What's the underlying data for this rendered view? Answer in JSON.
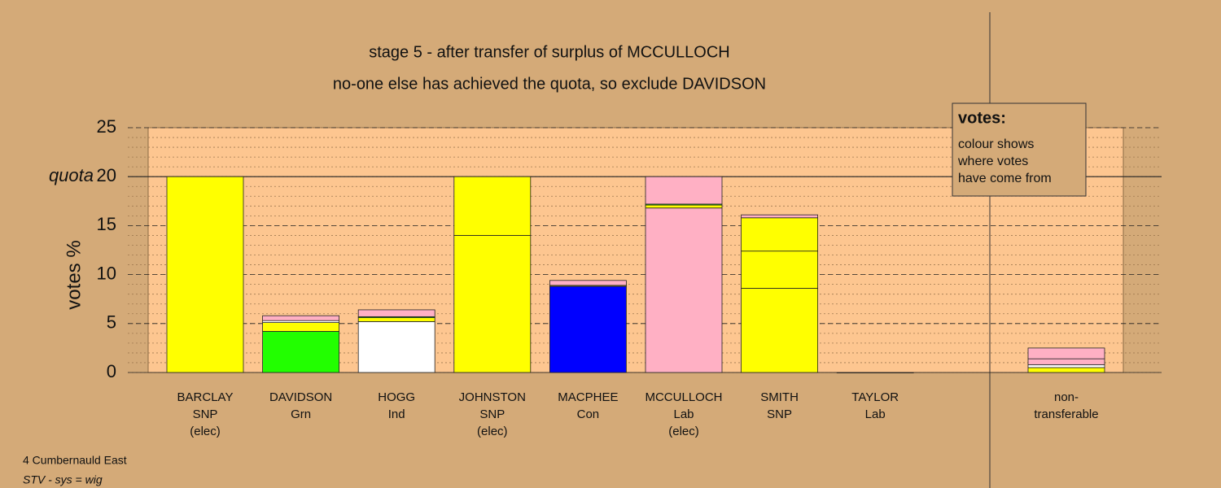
{
  "chart_data": {
    "type": "stacked-bar",
    "title": "stage 5 - after transfer of surplus of MCCULLOCH",
    "subtitle": "no-one else has achieved the quota, so exclude DAVIDSON",
    "y_label": "votes %",
    "quota_label": "quota",
    "quota": 20,
    "ylim": [
      0,
      25
    ],
    "yticks": [
      0,
      5,
      10,
      15,
      20,
      25
    ],
    "minor_step": 1,
    "grid": true,
    "legend": {
      "title": "votes:",
      "lines": [
        "colour shows",
        "where votes",
        "have come from"
      ]
    },
    "bars": [
      {
        "label": [
          "BARCLAY",
          "SNP",
          "(elec)"
        ],
        "segments": [
          {
            "color": "#ffff00",
            "value": 20
          }
        ]
      },
      {
        "label": [
          "DAVIDSON",
          "Grn"
        ],
        "segments": [
          {
            "color": "#22ff00",
            "value": 4.2
          },
          {
            "color": "#ffff00",
            "value": 0.9
          },
          {
            "color": "#ffffff",
            "value": 0.2
          },
          {
            "color": "#ffb0c4",
            "value": 0.5
          }
        ]
      },
      {
        "label": [
          "HOGG",
          "Ind"
        ],
        "segments": [
          {
            "color": "#ffffff",
            "value": 5.2
          },
          {
            "color": "#ffff00",
            "value": 0.4
          },
          {
            "color": "#22ff00",
            "value": 0.1
          },
          {
            "color": "#ffb0c4",
            "value": 0.7
          }
        ]
      },
      {
        "label": [
          "JOHNSTON",
          "SNP",
          "(elec)"
        ],
        "segments": [
          {
            "color": "#ffff00",
            "value": 14
          },
          {
            "color": "#ffff00",
            "value": 6
          }
        ]
      },
      {
        "label": [
          "MACPHEE",
          "Con"
        ],
        "segments": [
          {
            "color": "#0000ff",
            "value": 8.8
          },
          {
            "color": "#ffff00",
            "value": 0.1
          },
          {
            "color": "#ffb0c4",
            "value": 0.5
          }
        ]
      },
      {
        "label": [
          "MCCULLOCH",
          "Lab",
          "(elec)"
        ],
        "segments": [
          {
            "color": "#ffb0c4",
            "value": 16.8
          },
          {
            "color": "#ffff00",
            "value": 0.3
          },
          {
            "color": "#22ff00",
            "value": 0.1
          },
          {
            "color": "#ffb0c4",
            "value": 2.8
          }
        ]
      },
      {
        "label": [
          "SMITH",
          "SNP"
        ],
        "segments": [
          {
            "color": "#ffff00",
            "value": 8.6
          },
          {
            "color": "#ffff00",
            "value": 3.8
          },
          {
            "color": "#ffff00",
            "value": 3.4
          },
          {
            "color": "#ffb0c4",
            "value": 0.3
          }
        ]
      },
      {
        "label": [
          "TAYLOR",
          "Lab"
        ],
        "segments": [
          {
            "color": "#ffb0c4",
            "value": 0
          }
        ]
      }
    ],
    "nontransferable": {
      "label": [
        "non-",
        "transferable"
      ],
      "segments": [
        {
          "color": "#ffff00",
          "value": 0.5
        },
        {
          "color": "#ffffff",
          "value": 0.3
        },
        {
          "color": "#ffb0c4",
          "value": 0.6
        },
        {
          "color": "#ffb0c4",
          "value": 1.1
        }
      ]
    },
    "footer": [
      "4 Cumbernauld East",
      "STV - sys = wig"
    ]
  }
}
